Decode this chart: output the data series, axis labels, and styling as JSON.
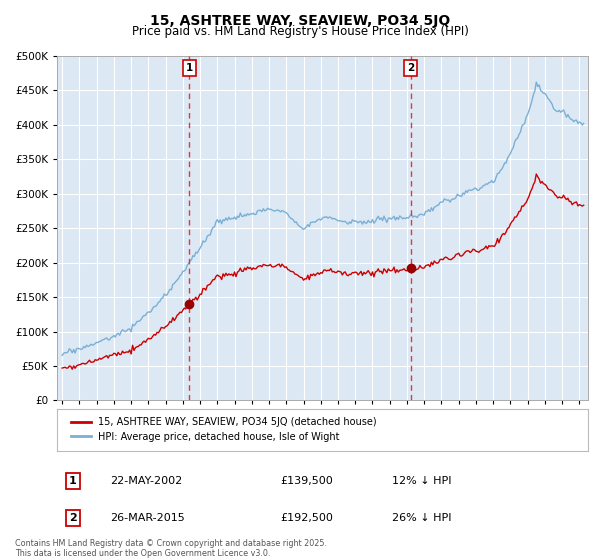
{
  "title": "15, ASHTREE WAY, SEAVIEW, PO34 5JQ",
  "subtitle": "Price paid vs. HM Land Registry's House Price Index (HPI)",
  "title_fontsize": 10,
  "subtitle_fontsize": 8.5,
  "bg_color": "#dce9f5",
  "grid_color": "#ffffff",
  "hpi_color": "#7bafd4",
  "price_color": "#cc0000",
  "marker_color": "#990000",
  "sale1_date_num": 2002.38,
  "sale1_price": 139500,
  "sale2_date_num": 2015.23,
  "sale2_price": 192500,
  "vline_color": "#ee3333",
  "ylim": [
    0,
    500000
  ],
  "yticks": [
    0,
    50000,
    100000,
    150000,
    200000,
    250000,
    300000,
    350000,
    400000,
    450000,
    500000
  ],
  "xlim_start": 1994.7,
  "xlim_end": 2025.5,
  "legend_label_price": "15, ASHTREE WAY, SEAVIEW, PO34 5JQ (detached house)",
  "legend_label_hpi": "HPI: Average price, detached house, Isle of Wight",
  "table_rows": [
    {
      "num": "1",
      "date": "22-MAY-2002",
      "price": "£139,500",
      "hpi": "12% ↓ HPI"
    },
    {
      "num": "2",
      "date": "26-MAR-2015",
      "price": "£192,500",
      "hpi": "26% ↓ HPI"
    }
  ],
  "footer": "Contains HM Land Registry data © Crown copyright and database right 2025.\nThis data is licensed under the Open Government Licence v3.0."
}
